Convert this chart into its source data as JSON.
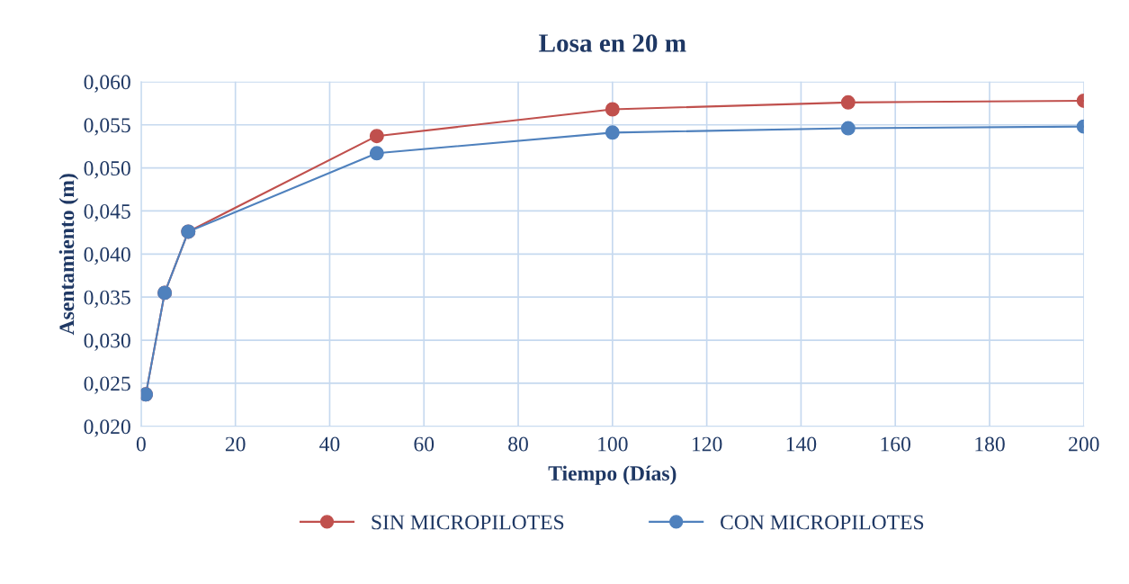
{
  "chart_data": {
    "type": "line",
    "title": "Losa en 20 m",
    "xlabel": "Tiempo (Días)",
    "ylabel": "Asentamiento (m)",
    "x": [
      1,
      5,
      10,
      50,
      100,
      150,
      200
    ],
    "series": [
      {
        "name": "SIN MICROPILOTES",
        "color": "#c0504d",
        "values": [
          0.0237,
          0.0355,
          0.0426,
          0.0537,
          0.0568,
          0.0576,
          0.0578
        ]
      },
      {
        "name": "CON MICROPILOTES",
        "color": "#4f81bd",
        "values": [
          0.0237,
          0.0355,
          0.0426,
          0.0517,
          0.0541,
          0.0546,
          0.0548
        ]
      }
    ],
    "xlim": [
      0,
      200
    ],
    "xticks": [
      0,
      20,
      40,
      60,
      80,
      100,
      120,
      140,
      160,
      180,
      200
    ],
    "ylim": [
      0.02,
      0.06
    ],
    "yticks": [
      {
        "value": 0.02,
        "label": "0,020"
      },
      {
        "value": 0.025,
        "label": "0,025"
      },
      {
        "value": 0.03,
        "label": "0,030"
      },
      {
        "value": 0.035,
        "label": "0,035"
      },
      {
        "value": 0.04,
        "label": "0,040"
      },
      {
        "value": 0.045,
        "label": "0,045"
      },
      {
        "value": 0.05,
        "label": "0,050"
      },
      {
        "value": 0.055,
        "label": "0,055"
      },
      {
        "value": 0.06,
        "label": "0,060"
      }
    ],
    "grid": true,
    "legend": "bottom",
    "marker": "circle",
    "line_style": "solid"
  }
}
